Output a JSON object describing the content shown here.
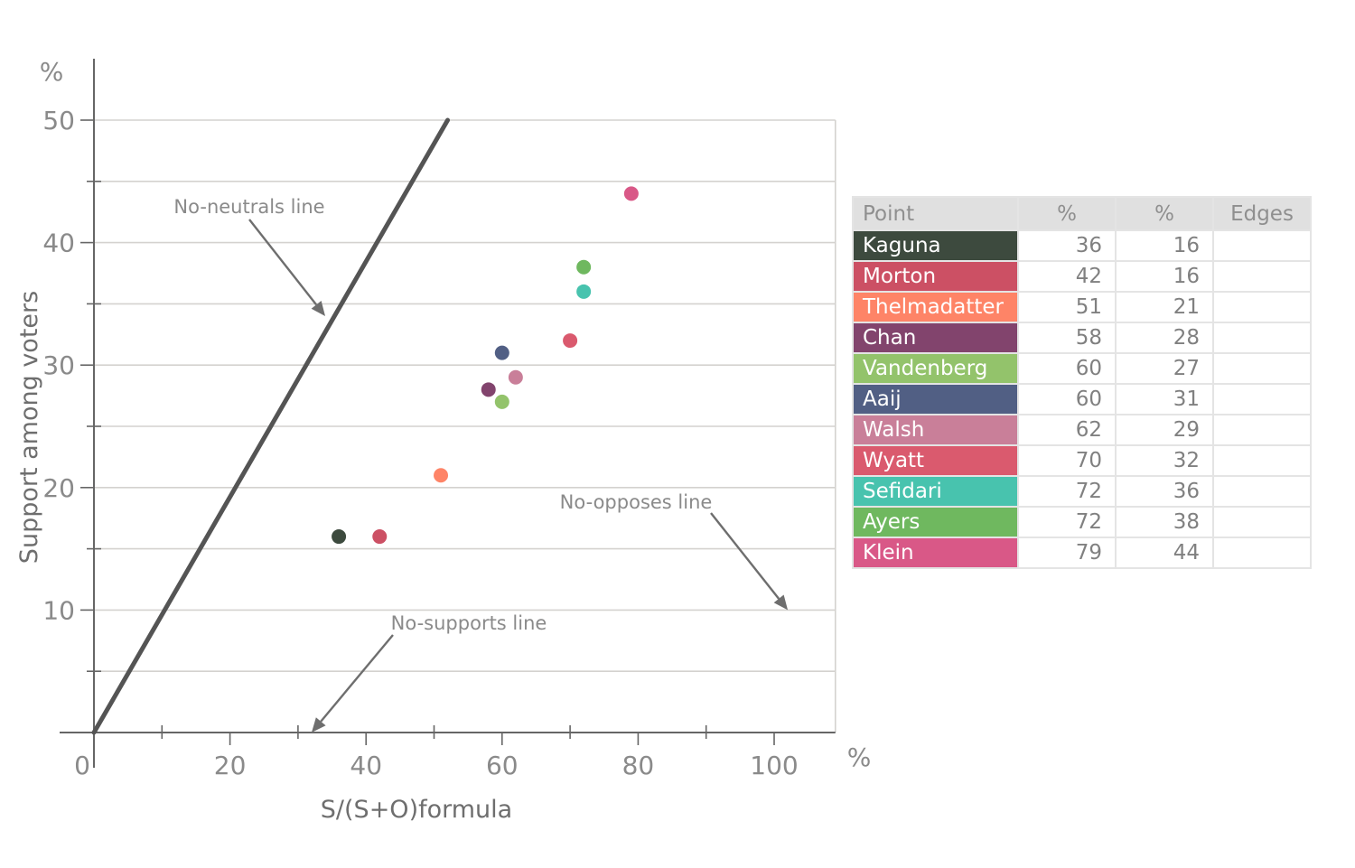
{
  "chart_data": {
    "type": "scatter",
    "title": "",
    "xlabel": "S/(S+O)formula",
    "ylabel": "Support among voters",
    "x_unit_label": "%",
    "y_unit_label": "%",
    "xlim": [
      0,
      109
    ],
    "ylim": [
      0,
      50
    ],
    "x_ticks_major": [
      0,
      20,
      40,
      60,
      80,
      100
    ],
    "x_ticks_minor": [
      10,
      30,
      50,
      70,
      90
    ],
    "y_ticks_major": [
      10,
      20,
      30,
      40,
      50
    ],
    "y_ticks_minor": [
      5,
      15,
      25,
      35,
      45
    ],
    "x_tick_labels": [
      "0",
      "20",
      "40",
      "60",
      "80",
      "100"
    ],
    "y_tick_labels": [
      "10",
      "20",
      "30",
      "40",
      "50"
    ],
    "grid": true,
    "reference_lines": [
      {
        "name": "No-neutrals line",
        "from": [
          0,
          0
        ],
        "to": [
          52,
          50
        ]
      }
    ],
    "annotations": [
      {
        "text": "No-neutrals line",
        "arrow_to": [
          34,
          34
        ]
      },
      {
        "text": "No-opposes line",
        "arrow_to": [
          102,
          10
        ]
      },
      {
        "text": "No-supports line",
        "arrow_to": [
          32,
          0
        ]
      }
    ],
    "points": [
      {
        "name": "Kaguna",
        "x": 36,
        "y": 16,
        "color": "#3d4a3e"
      },
      {
        "name": "Morton",
        "x": 42,
        "y": 16,
        "color": "#cc5064"
      },
      {
        "name": "Thelmadatter",
        "x": 51,
        "y": 21,
        "color": "#fe8467"
      },
      {
        "name": "Chan",
        "x": 58,
        "y": 28,
        "color": "#82446d"
      },
      {
        "name": "Vandenberg",
        "x": 60,
        "y": 27,
        "color": "#93c36b"
      },
      {
        "name": "Aaij",
        "x": 60,
        "y": 31,
        "color": "#515f84"
      },
      {
        "name": "Walsh",
        "x": 62,
        "y": 29,
        "color": "#c97f99"
      },
      {
        "name": "Wyatt",
        "x": 70,
        "y": 32,
        "color": "#da5a6e"
      },
      {
        "name": "Sefidari",
        "x": 72,
        "y": 36,
        "color": "#48c3ae"
      },
      {
        "name": "Ayers",
        "x": 72,
        "y": 38,
        "color": "#6fb85f"
      },
      {
        "name": "Klein",
        "x": 79,
        "y": 44,
        "color": "#d95887"
      }
    ]
  },
  "table": {
    "headers": [
      "Point",
      "%",
      "%",
      "Edges"
    ],
    "rows": [
      {
        "name": "Kaguna",
        "x": "36",
        "y": "16",
        "edges": ""
      },
      {
        "name": "Morton",
        "x": "42",
        "y": "16",
        "edges": ""
      },
      {
        "name": "Thelmadatter",
        "x": "51",
        "y": "21",
        "edges": ""
      },
      {
        "name": "Chan",
        "x": "58",
        "y": "28",
        "edges": ""
      },
      {
        "name": "Vandenberg",
        "x": "60",
        "y": "27",
        "edges": ""
      },
      {
        "name": "Aaij",
        "x": "60",
        "y": "31",
        "edges": ""
      },
      {
        "name": "Walsh",
        "x": "62",
        "y": "29",
        "edges": ""
      },
      {
        "name": "Wyatt",
        "x": "70",
        "y": "32",
        "edges": ""
      },
      {
        "name": "Sefidari",
        "x": "72",
        "y": "36",
        "edges": ""
      },
      {
        "name": "Ayers",
        "x": "72",
        "y": "38",
        "edges": ""
      },
      {
        "name": "Klein",
        "x": "79",
        "y": "44",
        "edges": ""
      }
    ]
  }
}
